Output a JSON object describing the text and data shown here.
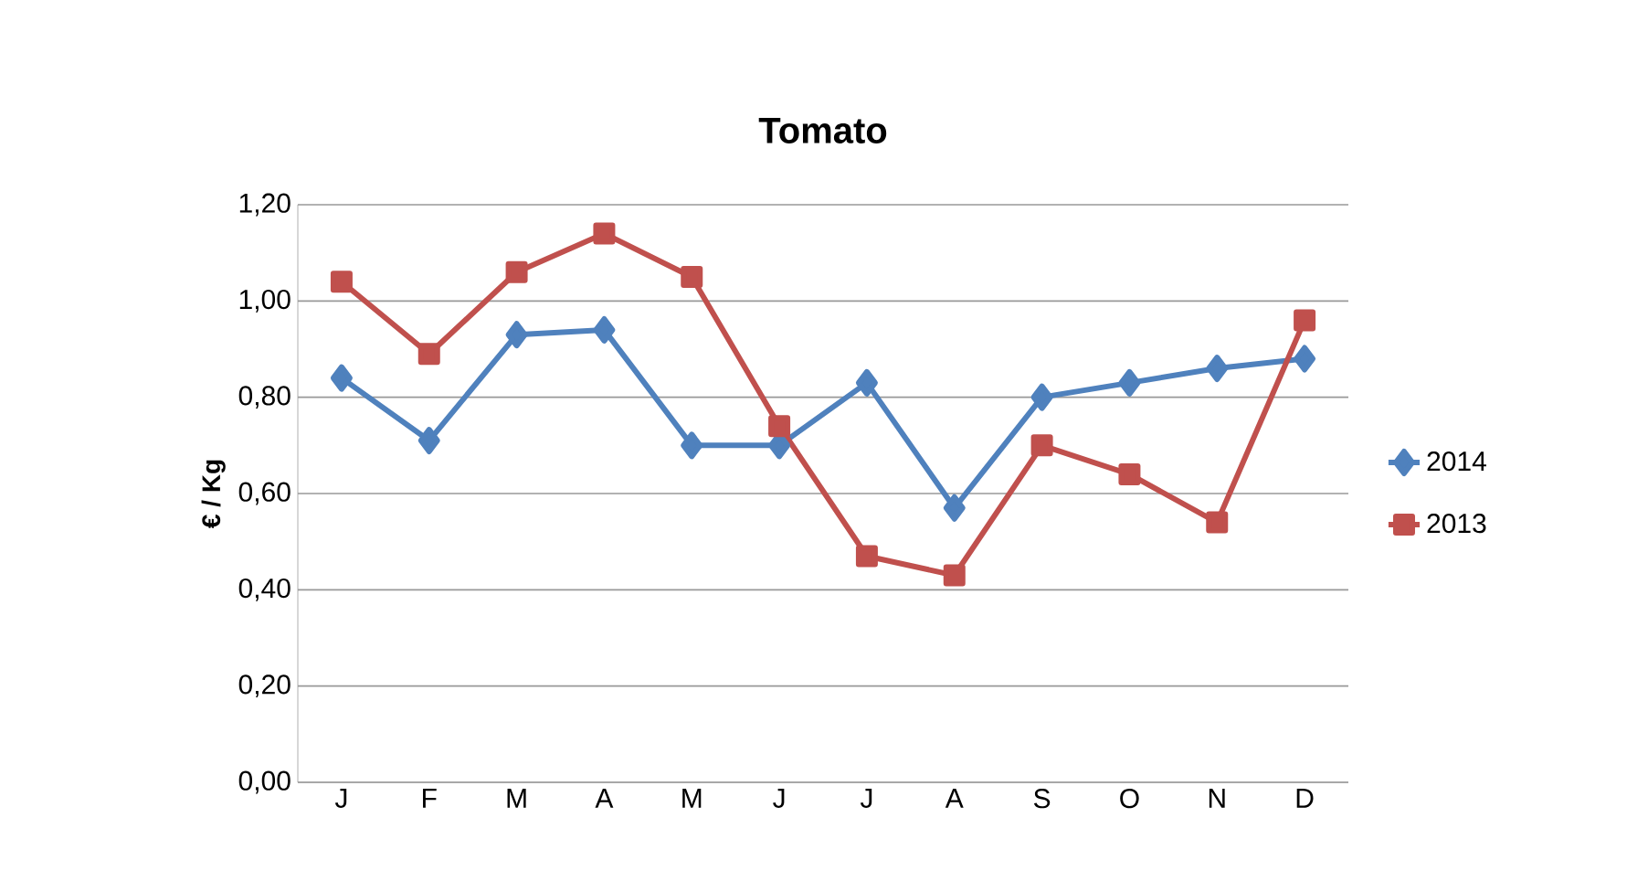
{
  "chart_data": {
    "type": "line",
    "title": "Tomato",
    "ylabel": "€ / Kg",
    "categories": [
      "J",
      "F",
      "M",
      "A",
      "M",
      "J",
      "J",
      "A",
      "S",
      "O",
      "N",
      "D"
    ],
    "series": [
      {
        "name": "2014",
        "color": "#4f81bd",
        "marker": "diamond",
        "values": [
          0.84,
          0.71,
          0.93,
          0.94,
          0.7,
          0.7,
          0.83,
          0.57,
          0.8,
          0.83,
          0.86,
          0.88
        ]
      },
      {
        "name": "2013",
        "color": "#c0504d",
        "marker": "square",
        "values": [
          1.04,
          0.89,
          1.06,
          1.14,
          1.05,
          0.74,
          0.47,
          0.43,
          0.7,
          0.64,
          0.54,
          0.96
        ]
      }
    ],
    "ylim": [
      0,
      1.2
    ],
    "yticks": [
      {
        "value": 0,
        "label": "0,00"
      },
      {
        "value": 0.2,
        "label": "0,20"
      },
      {
        "value": 0.4,
        "label": "0,40"
      },
      {
        "value": 0.6,
        "label": "0,60"
      },
      {
        "value": 0.8,
        "label": "0,80"
      },
      {
        "value": 1.0,
        "label": "1,00"
      },
      {
        "value": 1.2,
        "label": "1,20"
      }
    ],
    "grid": "y",
    "legend": "right",
    "line_style": "solid"
  }
}
